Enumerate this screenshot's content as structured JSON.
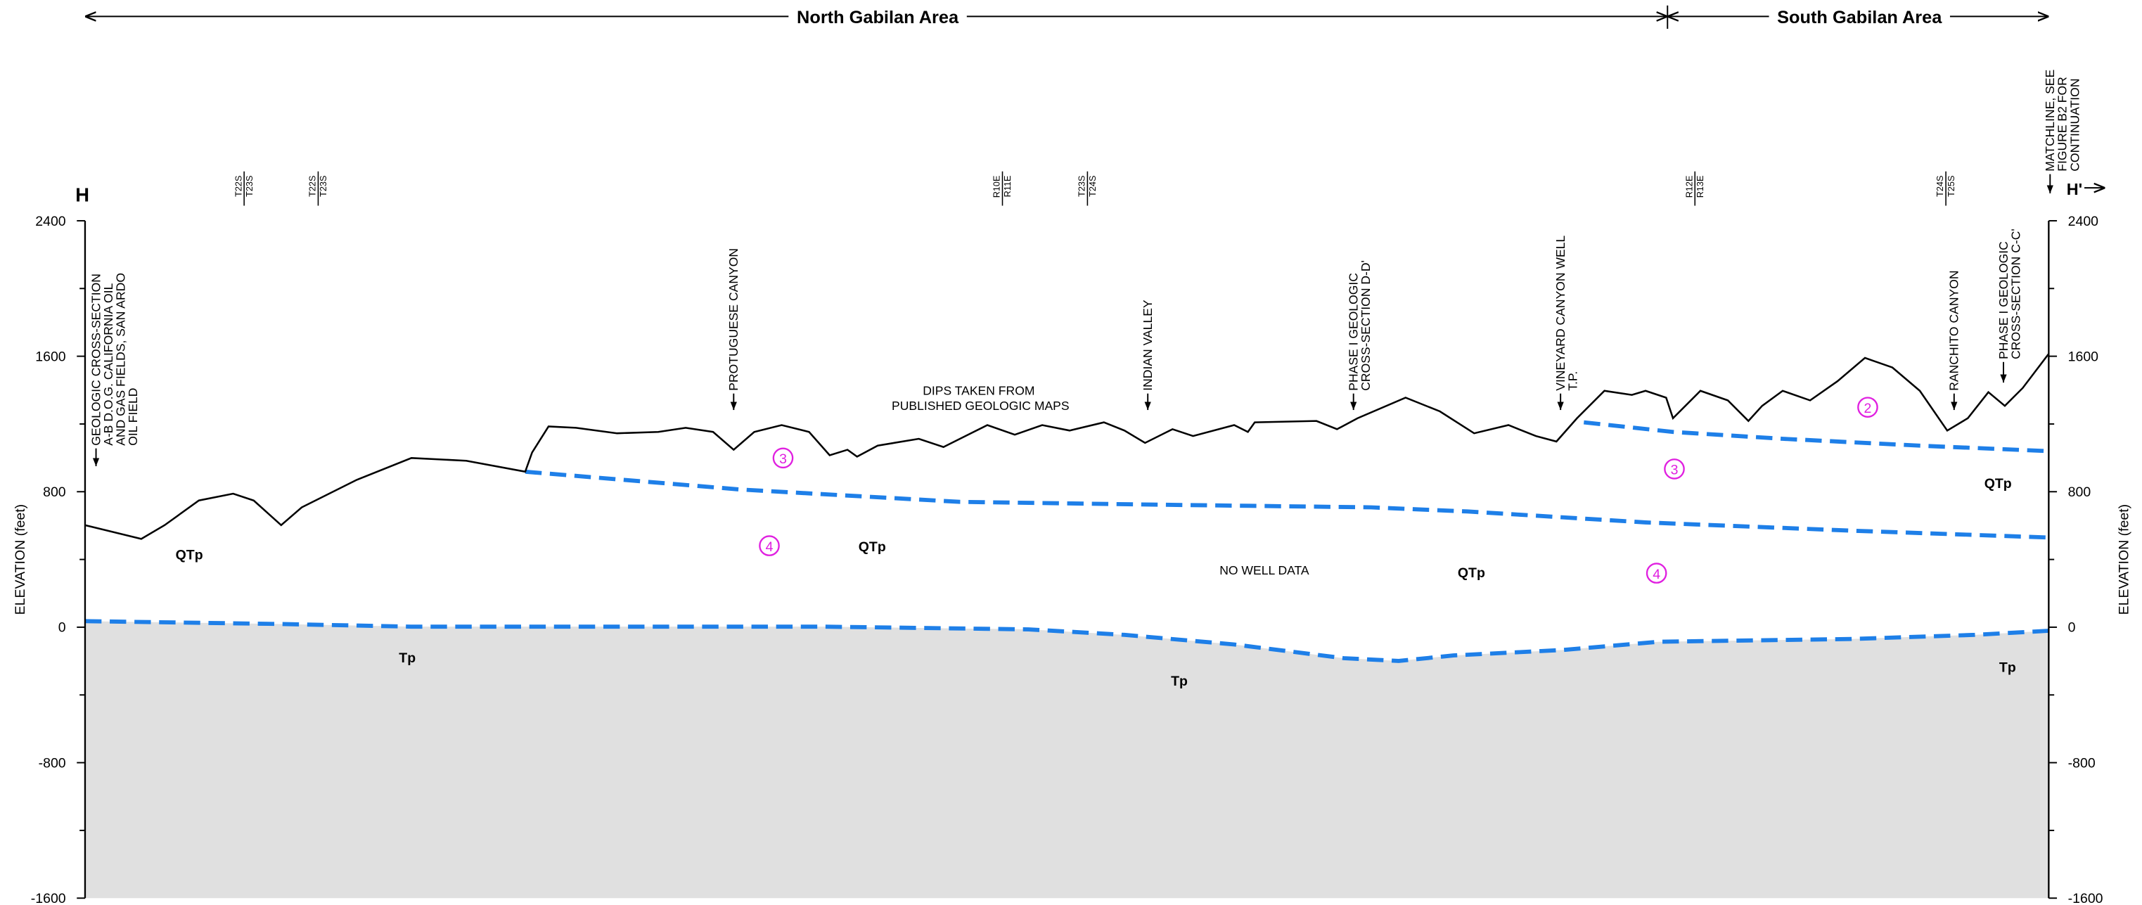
{
  "header": {
    "north": "North Gabilan Area",
    "south": "South Gabilan Area"
  },
  "section": {
    "start": "H",
    "end": "H'"
  },
  "axis": {
    "label": "ELEVATION (feet)",
    "ylim": [
      -1600,
      2400
    ],
    "yticks": [
      2400,
      1600,
      800,
      0,
      -800,
      -1600
    ]
  },
  "township_labels": [
    [
      "T22S",
      "T23S"
    ],
    [
      "T22S",
      "T23S"
    ],
    [
      "R10E",
      "R11E"
    ],
    [
      "T23S",
      "T24S"
    ],
    [
      "R12E",
      "R13E"
    ],
    [
      "T24S",
      "T25S"
    ]
  ],
  "annotations": [
    [
      "GEOLOGIC CROSS-SECTION",
      "A-B D.O.G. CALIFORNIA OIL",
      "AND GAS FIELDS, SAN ARDO",
      "OIL FIELD"
    ],
    [
      "PROTUGUESE CANYON"
    ],
    [
      "INDIAN VALLEY"
    ],
    [
      "PHASE I GEOLOGIC",
      "CROSS-SECTION D-D'"
    ],
    [
      "VINEYARD CANYON WELL",
      "T.P."
    ],
    [
      "RANCHITO CANYON"
    ],
    [
      "PHASE I GEOLOGIC",
      "CROSS-SECTION C-C'"
    ],
    [
      "MATCHLINE, SEE",
      "FIGURE B2 FOR",
      "CONTINUATION"
    ]
  ],
  "note": [
    "DIPS TAKEN FROM",
    "PUBLISHED GEOLOGIC MAPS"
  ],
  "no_data": "NO WELL DATA",
  "units": [
    "QTp",
    "QTp",
    "QTp",
    "QTp",
    "Tp",
    "Tp",
    "Tp"
  ],
  "markers": [
    "3",
    "4",
    "3",
    "4",
    "2"
  ]
}
